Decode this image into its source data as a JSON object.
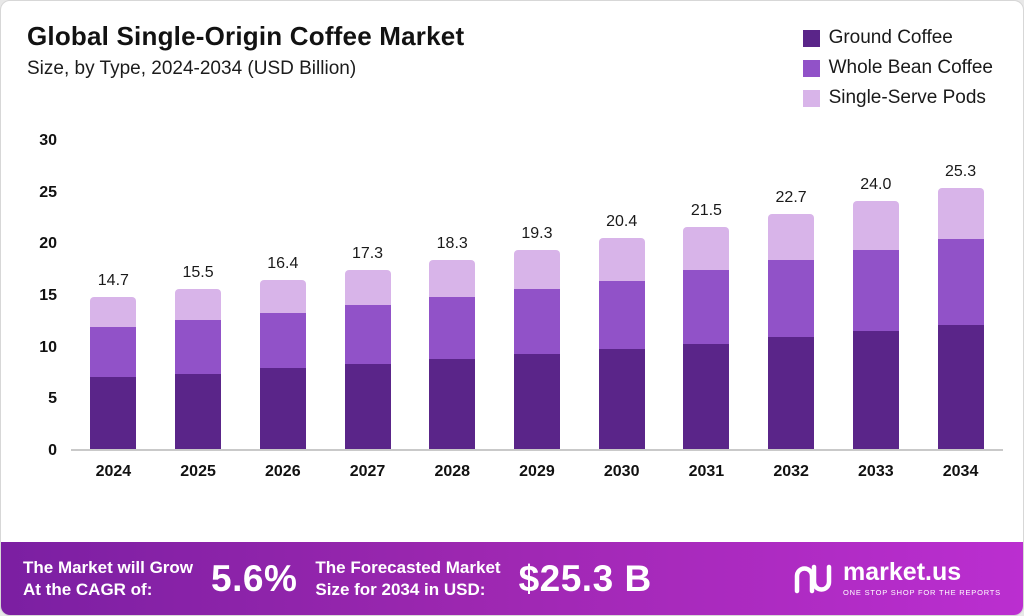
{
  "header": {
    "title": "Global Single-Origin Coffee Market",
    "subtitle": "Size, by Type, 2024-2034 (USD Billion)"
  },
  "chart_data": {
    "type": "bar",
    "stacked": true,
    "title": "Global Single-Origin Coffee Market Size, by Type, 2024-2034 (USD Billion)",
    "xlabel": "",
    "ylabel": "",
    "ylim": [
      0,
      30
    ],
    "y_ticks": [
      0,
      5,
      10,
      15,
      20,
      25,
      30
    ],
    "grid": false,
    "legend_position": "top-right",
    "categories": [
      "2024",
      "2025",
      "2026",
      "2027",
      "2028",
      "2029",
      "2030",
      "2031",
      "2032",
      "2033",
      "2034"
    ],
    "totals": [
      "14.7",
      "15.5",
      "16.4",
      "17.3",
      "18.3",
      "19.3",
      "20.4",
      "21.5",
      "22.7",
      "24.0",
      "25.3"
    ],
    "series": [
      {
        "name": "Ground Coffee",
        "color": "#5a2589",
        "values": [
          7.0,
          7.3,
          7.8,
          8.2,
          8.7,
          9.2,
          9.7,
          10.2,
          10.8,
          11.4,
          12.0
        ]
      },
      {
        "name": "Whole Bean Coffee",
        "color": "#9152c8",
        "values": [
          4.8,
          5.2,
          5.4,
          5.7,
          6.0,
          6.3,
          6.6,
          7.1,
          7.5,
          7.9,
          8.3
        ]
      },
      {
        "name": "Single-Serve Pods",
        "color": "#d8b4e9",
        "values": [
          2.9,
          3.0,
          3.2,
          3.4,
          3.6,
          3.8,
          4.1,
          4.2,
          4.4,
          4.7,
          5.0
        ]
      }
    ]
  },
  "footer": {
    "cagr_label_line1": "The Market will Grow",
    "cagr_label_line2": "At the CAGR of:",
    "cagr_value": "5.6%",
    "forecast_label_line1": "The Forecasted Market",
    "forecast_label_line2": "Size for 2034 in USD:",
    "forecast_value": "$25.3 B",
    "brand": "market.us",
    "tagline": "One Stop Shop For The Reports"
  }
}
